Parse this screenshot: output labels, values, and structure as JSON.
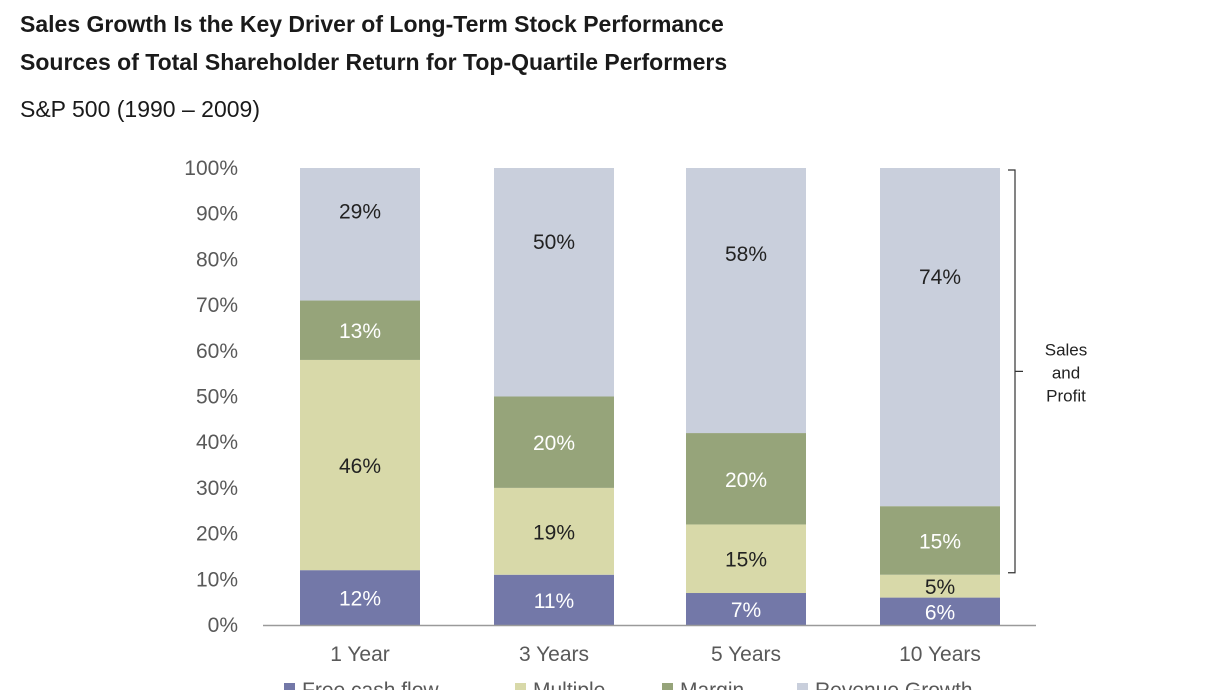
{
  "header": {
    "title": "Sales Growth Is the Key Driver of Long-Term Stock Performance",
    "subtitle": "Sources of Total Shareholder Return for Top-Quartile Performers",
    "period": "S&P 500 (1990 – 2009)"
  },
  "bracket": {
    "lines": [
      "Sales",
      "and",
      "Profit"
    ]
  },
  "chart_data": {
    "type": "bar",
    "stacked": true,
    "categories": [
      "1 Year",
      "3 Years",
      "5 Years",
      "10 Years"
    ],
    "ylim": [
      0,
      100
    ],
    "yticks": [
      "0%",
      "10%",
      "20%",
      "30%",
      "40%",
      "50%",
      "60%",
      "70%",
      "80%",
      "90%",
      "100%"
    ],
    "grid": false,
    "legend_position": "bottom",
    "series": [
      {
        "name": "Free cash flow",
        "color": "#7378a8",
        "label_color": "#ffffff",
        "values": [
          12,
          11,
          7,
          6
        ]
      },
      {
        "name": "Multiple",
        "color": "#d8d9a9",
        "label_color": "#222222",
        "values": [
          46,
          19,
          15,
          5
        ]
      },
      {
        "name": "Margin",
        "color": "#96a47a",
        "label_color": "#ffffff",
        "values": [
          13,
          20,
          20,
          15
        ]
      },
      {
        "name": "Revenue Growth",
        "color": "#c9cfdc",
        "label_color": "#222222",
        "values": [
          29,
          50,
          58,
          74
        ]
      }
    ]
  }
}
